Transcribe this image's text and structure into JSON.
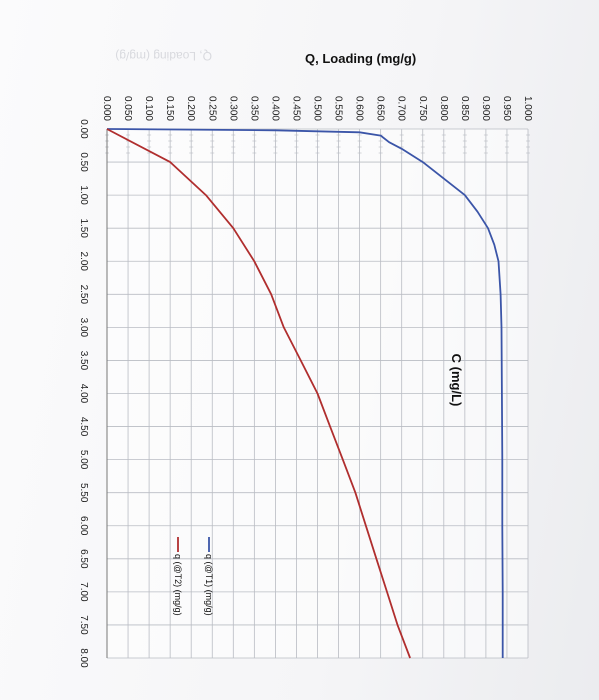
{
  "chart_data": {
    "type": "line",
    "title": "",
    "ylabel": "Q, Loading (mg/g)",
    "xlabel": "C (mg/L)",
    "xlim": [
      0,
      8
    ],
    "ylim": [
      0,
      1
    ],
    "x_ticks": [
      "0.00",
      "0.50",
      "1.00",
      "1.50",
      "2.00",
      "2.50",
      "3.00",
      "3.50",
      "4.00",
      "4.50",
      "5.00",
      "5.50",
      "6.00",
      "6.50",
      "7.00",
      "7.50",
      "8.00"
    ],
    "y_ticks": [
      "0.000",
      "0.050",
      "0.100",
      "0.150",
      "0.200",
      "0.250",
      "0.300",
      "0.350",
      "0.400",
      "0.450",
      "0.500",
      "0.550",
      "0.600",
      "0.650",
      "0.700",
      "0.750",
      "0.800",
      "0.850",
      "0.900",
      "0.950",
      "1.000"
    ],
    "grid": true,
    "legend_position": "right",
    "series": [
      {
        "name": "q (@T1) (mg/g)",
        "color": "#3b55a8",
        "x": [
          0,
          0.02,
          0.05,
          0.1,
          0.2,
          0.3,
          0.5,
          0.75,
          1.0,
          1.25,
          1.5,
          1.75,
          2.0,
          2.5,
          3.0,
          4.0,
          5.0,
          6.0,
          7.0,
          8.0
        ],
        "y": [
          0,
          0.4,
          0.6,
          0.65,
          0.67,
          0.7,
          0.75,
          0.8,
          0.85,
          0.88,
          0.905,
          0.92,
          0.93,
          0.935,
          0.937,
          0.938,
          0.939,
          0.939,
          0.94,
          0.94
        ]
      },
      {
        "name": "q (@T2) (mg/g)",
        "color": "#b02e2e",
        "x": [
          0,
          0.5,
          1.0,
          1.5,
          2.0,
          2.5,
          3.0,
          3.5,
          4.0,
          4.5,
          5.0,
          5.5,
          6.0,
          6.5,
          7.0,
          7.5,
          8.0
        ],
        "y": [
          0,
          0.15,
          0.235,
          0.3,
          0.35,
          0.39,
          0.42,
          0.46,
          0.5,
          0.53,
          0.56,
          0.59,
          0.615,
          0.64,
          0.665,
          0.69,
          0.72
        ]
      }
    ]
  },
  "watermark": "Q, Loading (mg/g)"
}
